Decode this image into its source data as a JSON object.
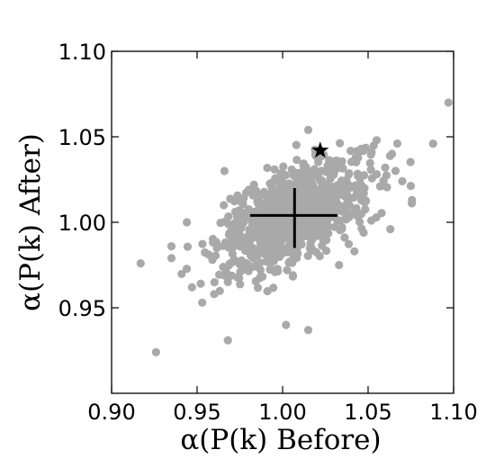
{
  "chart_data": {
    "type": "scatter",
    "title": "",
    "xlabel": "α(P(k)   Before)",
    "ylabel": "α(P(k)   After)",
    "xlim": [
      0.9,
      1.1
    ],
    "ylim": [
      0.9,
      1.1
    ],
    "xticks": [
      "0.90",
      "0.95",
      "1.00",
      "1.05",
      "1.10"
    ],
    "yticks": [
      "0.95",
      "1.00",
      "1.05",
      "1.10"
    ],
    "grid": false,
    "point_color": "#a9a9a9",
    "marker_color": "#000000",
    "cloud": {
      "count": 900,
      "mean_x": 1.007,
      "mean_y": 1.004,
      "sd_x": 0.022,
      "sd_y": 0.016,
      "correlation": 0.55,
      "seed": 7
    },
    "outliers": [
      [
        0.917,
        0.976
      ],
      [
        0.926,
        0.924
      ],
      [
        0.935,
        0.979
      ],
      [
        0.935,
        0.986
      ],
      [
        0.947,
        0.962
      ],
      [
        0.953,
        0.953
      ],
      [
        0.96,
        0.958
      ],
      [
        0.968,
        0.931
      ],
      [
        1.002,
        0.94
      ],
      [
        1.015,
        0.937
      ],
      [
        1.033,
        0.975
      ],
      [
        1.042,
        0.983
      ],
      [
        1.055,
        1.048
      ],
      [
        1.06,
        1.032
      ],
      [
        1.063,
        0.996
      ],
      [
        1.088,
        1.046
      ],
      [
        1.097,
        1.07
      ],
      [
        1.015,
        1.054
      ],
      [
        0.966,
        1.03
      ],
      [
        1.07,
        1.024
      ],
      [
        1.046,
        1.043
      ],
      [
        0.944,
        1.0
      ]
    ],
    "mean_cross": {
      "center": [
        1.007,
        1.004
      ],
      "x_range": [
        0.981,
        1.032
      ],
      "y_range": [
        0.985,
        1.02
      ]
    },
    "star": [
      1.022,
      1.042
    ]
  }
}
